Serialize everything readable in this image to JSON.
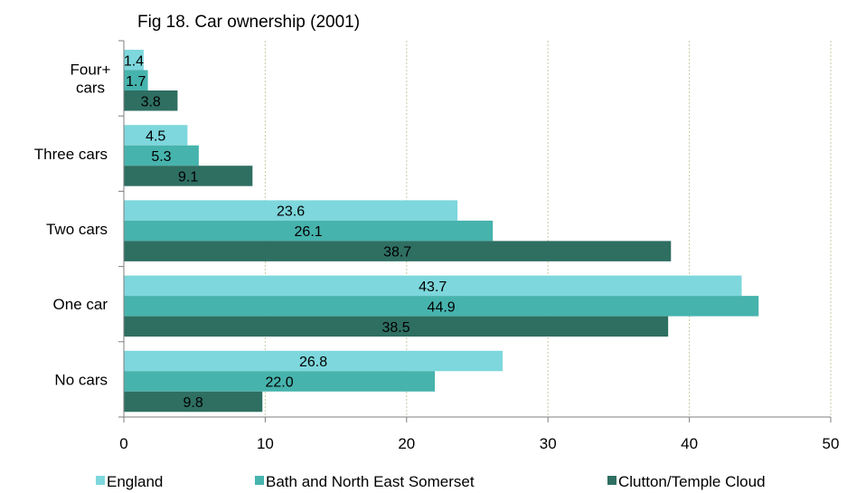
{
  "chart_data": {
    "type": "bar",
    "orientation": "horizontal",
    "title": "Fig 18. Car ownership (2001)",
    "categories": [
      "Four+ cars",
      "Three cars",
      "Two cars",
      "One car",
      "No cars"
    ],
    "category_lines": [
      [
        "Four+",
        "cars"
      ],
      [
        "Three cars"
      ],
      [
        "Two cars"
      ],
      [
        "One car"
      ],
      [
        "No cars"
      ]
    ],
    "series": [
      {
        "name": "England",
        "color": "#7dd7dc",
        "values": [
          1.4,
          4.5,
          23.6,
          43.7,
          26.8
        ],
        "labels": [
          "1.4",
          "4.5",
          "23.6",
          "43.7",
          "26.8"
        ]
      },
      {
        "name": "Bath and North East Somerset",
        "color": "#47b3ad",
        "values": [
          1.7,
          5.3,
          26.1,
          44.9,
          22.0
        ],
        "labels": [
          "1.7",
          "5.3",
          "26.1",
          "44.9",
          "22.0"
        ]
      },
      {
        "name": "Clutton/Temple Cloud",
        "color": "#2e6f62",
        "values": [
          3.8,
          9.1,
          38.7,
          38.5,
          9.8
        ],
        "labels": [
          "3.8",
          "9.1",
          "38.7",
          "38.5",
          "9.8"
        ]
      }
    ],
    "xlim": [
      0,
      50
    ],
    "xticks": [
      0,
      10,
      20,
      30,
      40,
      50
    ],
    "grid": "vertical dotted",
    "legend": "bottom"
  }
}
